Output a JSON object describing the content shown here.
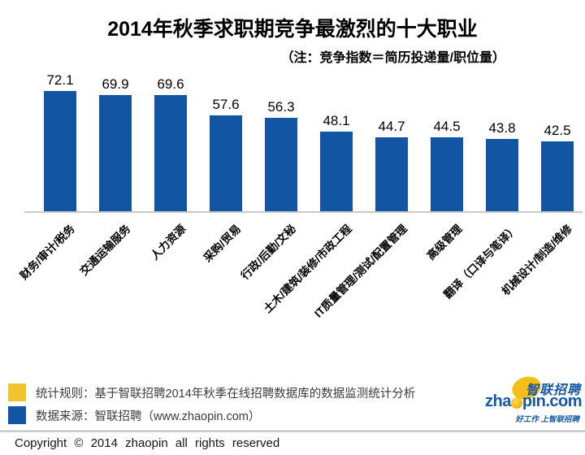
{
  "chart_data": {
    "type": "bar",
    "title": "2014年秋季求职期竞争最激烈的十大职业",
    "subtitle": "（注：竞争指数＝简历投递量/职位量）",
    "categories": [
      "财务/审计/税务",
      "交通运输服务",
      "人力资源",
      "采购/贸易",
      "行政/后勤/文秘",
      "土木/建筑/装修/市政工程",
      "IT质量管理/测试/配置管理",
      "高级管理",
      "翻译（口译与笔译）",
      "机械设计/制造/维修"
    ],
    "values": [
      72.1,
      69.9,
      69.6,
      57.6,
      56.3,
      48.1,
      44.7,
      44.5,
      43.8,
      42.5
    ],
    "bar_color": "#1155A3",
    "value_labels_shown": true,
    "xlabel": "",
    "ylabel": "",
    "ylim": [
      0,
      80
    ],
    "grid": false,
    "legend_position": "none",
    "category_label_rotation_deg": 45,
    "axis_line_color": "#c9c9c9"
  },
  "legend": {
    "rule_swatch_color": "#F0C32F",
    "rule_text": "统计规则：基于智联招聘2014年秋季在线招聘数据库的数据监测统计分析",
    "source_swatch_color": "#1155A3",
    "source_text": "数据来源：智联招聘（www.zhaopin.com）"
  },
  "logo": {
    "cn_name": "智联招聘",
    "en_pre": "zha",
    "en_post": "pin.com",
    "tagline": "好工作 上智联招聘",
    "blue": "#1558A7",
    "yellow": "#F6BE19"
  },
  "footer": {
    "copyright": "Copyright © 2014 zhaopin all rights reserved"
  }
}
